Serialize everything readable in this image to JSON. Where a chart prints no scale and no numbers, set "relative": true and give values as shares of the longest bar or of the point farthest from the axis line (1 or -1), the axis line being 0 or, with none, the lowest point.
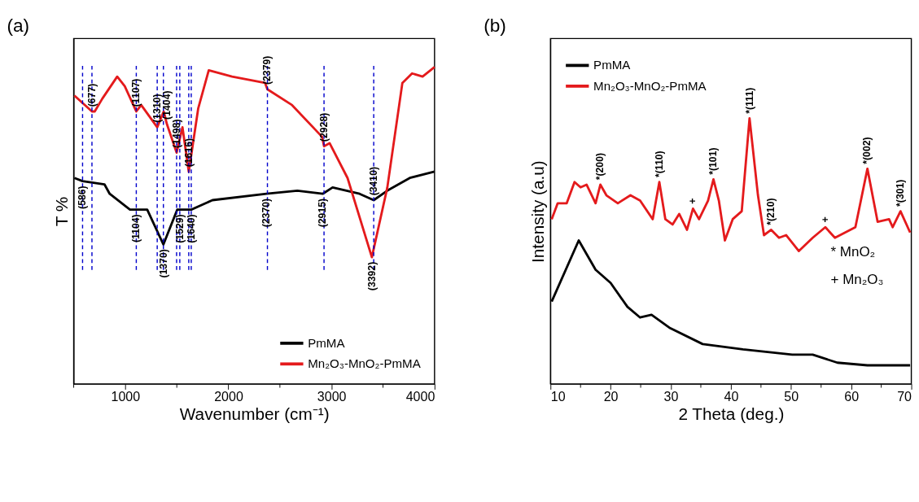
{
  "chart_data": [
    {
      "type": "line",
      "title": "(a)",
      "xlabel": "Wavenumber (cm⁻¹)",
      "ylabel": "T %",
      "relative": true,
      "tick_labels": "x",
      "grid": false,
      "legend": "bottom right",
      "xlim": [
        500,
        4000
      ],
      "xticks": [
        {
          "value": 500,
          "label": null
        },
        1000,
        {
          "value": 1500,
          "label": null
        },
        2000,
        {
          "value": 2500,
          "label": null
        },
        3000,
        {
          "value": 3500,
          "label": null
        },
        4000
      ],
      "series": [
        {
          "name": "PmMA",
          "color": "#000000",
          "x": [
            507,
            586,
            798,
            849,
            1046,
            1104,
            1213,
            1370,
            1504,
            1529,
            1640,
            1846,
            2370,
            2669,
            2915,
            3011,
            3273,
            3410,
            3542,
            3760,
            4000
          ],
          "values": [
            0.65,
            0.64,
            0.63,
            0.6,
            0.55,
            0.55,
            0.55,
            0.44,
            0.55,
            0.55,
            0.55,
            0.58,
            0.6,
            0.61,
            0.6,
            0.62,
            0.6,
            0.58,
            0.61,
            0.65,
            0.67
          ]
        },
        {
          "name": "Mn₂O₃-MnO₂-PmMA",
          "color": "#e41a1c",
          "x": [
            507,
            677,
            704,
            777,
            922,
            995,
            1107,
            1155,
            1310,
            1373,
            1404,
            1498,
            1555,
            1616,
            1708,
            1810,
            2036,
            2356,
            2379,
            2618,
            2909,
            2928,
            2982,
            3156,
            3392,
            3542,
            3688,
            3782,
            3884,
            4000
          ],
          "values": [
            0.91,
            0.86,
            0.86,
            0.9,
            0.97,
            0.94,
            0.86,
            0.88,
            0.81,
            0.86,
            0.82,
            0.73,
            0.81,
            0.67,
            0.87,
            0.99,
            0.97,
            0.95,
            0.93,
            0.88,
            0.78,
            0.75,
            0.76,
            0.65,
            0.4,
            0.62,
            0.95,
            0.98,
            0.97,
            1.0
          ]
        }
      ],
      "ref_lines": [
        {
          "axis": "x",
          "value": 677,
          "color": "#0000cc",
          "line_style": "dashed"
        },
        {
          "axis": "x",
          "value": 586,
          "color": "#0000cc",
          "line_style": "dashed"
        },
        {
          "axis": "x",
          "value": 1107,
          "color": "#0000cc",
          "line_style": "dashed"
        },
        {
          "axis": "x",
          "value": 1310,
          "color": "#0000cc",
          "line_style": "dashed"
        },
        {
          "axis": "x",
          "value": 1370,
          "color": "#0000cc",
          "line_style": "dashed"
        },
        {
          "axis": "x",
          "value": 1498,
          "color": "#0000cc",
          "line_style": "dashed"
        },
        {
          "axis": "x",
          "value": 1529,
          "color": "#0000cc",
          "line_style": "dashed"
        },
        {
          "axis": "x",
          "value": 1616,
          "color": "#0000cc",
          "line_style": "dashed"
        },
        {
          "axis": "x",
          "value": 1640,
          "color": "#0000cc",
          "line_style": "dashed"
        },
        {
          "axis": "x",
          "value": 2379,
          "color": "#0000cc",
          "line_style": "dashed"
        },
        {
          "axis": "x",
          "value": 2928,
          "color": "#0000cc",
          "line_style": "dashed"
        },
        {
          "axis": "x",
          "value": 3410,
          "color": "#0000cc",
          "line_style": "dashed"
        }
      ],
      "annotations": [
        {
          "text": "(677)",
          "x": 677,
          "y": 0.86
        },
        {
          "text": "(1107)",
          "x": 1107,
          "y": 0.86
        },
        {
          "text": "(1310)",
          "x": 1310,
          "y": 0.81
        },
        {
          "text": "(1404)",
          "x": 1404,
          "y": 0.82
        },
        {
          "text": "(1498)",
          "x": 1498,
          "y": 0.73
        },
        {
          "text": "(1616)",
          "x": 1616,
          "y": 0.67
        },
        {
          "text": "(2379)",
          "x": 2379,
          "y": 0.93
        },
        {
          "text": "(2928)",
          "x": 2928,
          "y": 0.75
        },
        {
          "text": "(3410)",
          "x": 3410,
          "y": 0.58
        },
        {
          "text": "(586)",
          "x": 586,
          "y": 0.64
        },
        {
          "text": "(1104)",
          "x": 1104,
          "y": 0.55
        },
        {
          "text": "(1370)",
          "x": 1370,
          "y": 0.44
        },
        {
          "text": "(1529)",
          "x": 1529,
          "y": 0.55
        },
        {
          "text": "(1640)",
          "x": 1640,
          "y": 0.55
        },
        {
          "text": "(2370)",
          "x": 2370,
          "y": 0.6
        },
        {
          "text": "(2915)",
          "x": 2915,
          "y": 0.6
        },
        {
          "text": "(3392)",
          "x": 3392,
          "y": 0.4
        }
      ]
    },
    {
      "type": "line",
      "title": "(b)",
      "xlabel": "2 Theta (deg.)",
      "ylabel": "Intensity (a.u)",
      "relative": true,
      "tick_labels": "x",
      "grid": false,
      "legend": "top left",
      "xlim": [
        10,
        70
      ],
      "xticks": [
        10,
        {
          "value": 15,
          "label": null
        },
        20,
        {
          "value": 25,
          "label": null
        },
        30,
        {
          "value": 35,
          "label": null
        },
        40,
        {
          "value": 45,
          "label": null
        },
        50,
        {
          "value": 55,
          "label": null
        },
        60,
        {
          "value": 65,
          "label": null
        },
        70
      ],
      "series": [
        {
          "name": "PmMA",
          "color": "#000000",
          "x": [
            10.2,
            14.7,
            17.5,
            20.0,
            22.8,
            24.9,
            26.8,
            29.9,
            35.3,
            42.0,
            46.1,
            50.2,
            53.6,
            57.7,
            62.7,
            69.8
          ],
          "values": [
            0.31,
            0.54,
            0.43,
            0.38,
            0.29,
            0.25,
            0.26,
            0.21,
            0.15,
            0.13,
            0.12,
            0.11,
            0.11,
            0.08,
            0.07,
            0.07
          ]
        },
        {
          "name": "Mn₂O₃-MnO₂-PmMA",
          "color": "#e41a1c",
          "x": [
            10.2,
            11.2,
            12.7,
            14.0,
            15.0,
            16.0,
            17.5,
            18.3,
            19.3,
            21.2,
            23.3,
            24.9,
            27.0,
            28.1,
            29.1,
            30.3,
            31.4,
            32.7,
            33.7,
            34.7,
            36.2,
            37.1,
            38.0,
            39.0,
            40.3,
            41.8,
            43.1,
            44.5,
            45.5,
            46.7,
            48.0,
            49.2,
            51.3,
            53.6,
            55.7,
            57.3,
            60.7,
            62.7,
            64.4,
            66.3,
            66.9,
            68.2,
            69.8
          ],
          "values": [
            0.62,
            0.68,
            0.68,
            0.76,
            0.74,
            0.75,
            0.68,
            0.75,
            0.71,
            0.68,
            0.71,
            0.69,
            0.62,
            0.76,
            0.62,
            0.6,
            0.64,
            0.58,
            0.66,
            0.62,
            0.69,
            0.77,
            0.69,
            0.54,
            0.62,
            0.65,
            1.0,
            0.71,
            0.56,
            0.58,
            0.55,
            0.56,
            0.5,
            0.55,
            0.59,
            0.55,
            0.59,
            0.81,
            0.61,
            0.62,
            0.59,
            0.65,
            0.57
          ]
        }
      ],
      "annotations": [
        {
          "text": "*(200)",
          "x": 18.3,
          "y": 0.75
        },
        {
          "text": "*(110)",
          "x": 28.1,
          "y": 0.76
        },
        {
          "text": "*(101)",
          "x": 37.1,
          "y": 0.77
        },
        {
          "text": "*(111)",
          "x": 43.1,
          "y": 1.0
        },
        {
          "text": "*(210)",
          "x": 46.7,
          "y": 0.58
        },
        {
          "text": "*(002)",
          "x": 62.7,
          "y": 0.81
        },
        {
          "text": "*(301)",
          "x": 68.2,
          "y": 0.65
        },
        {
          "text": "+",
          "x": 33.7,
          "y": 0.66
        },
        {
          "text": "+",
          "x": 55.7,
          "y": 0.59
        },
        "* MnO₂",
        "+ Mn₂O₃"
      ]
    }
  ]
}
